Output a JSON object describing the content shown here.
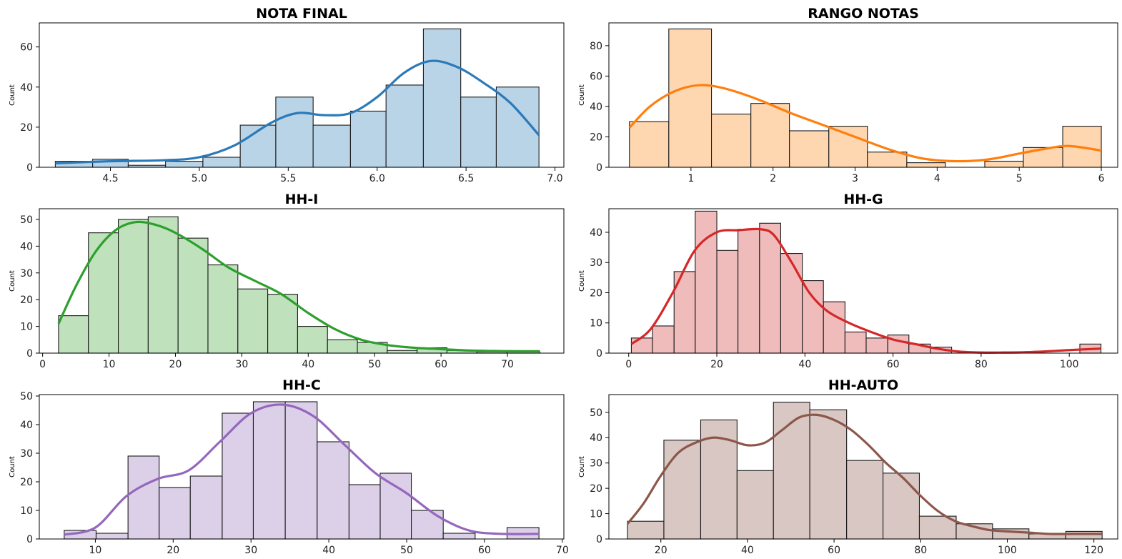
{
  "chart_data": [
    {
      "type": "histogram",
      "title": "NOTA FINAL",
      "ylabel": "Count",
      "xlabel": "",
      "xlim": [
        4.1,
        7.05
      ],
      "ylim": [
        0,
        72
      ],
      "xticks": [
        "4.5",
        "5.0",
        "5.5",
        "6.0",
        "6.5",
        "7.0"
      ],
      "yticks": [
        "0",
        "20",
        "40",
        "60"
      ],
      "bin_edges": [
        4.19,
        4.4,
        4.6,
        4.81,
        5.02,
        5.23,
        5.43,
        5.64,
        5.85,
        6.05,
        6.26,
        6.47,
        6.67,
        6.91
      ],
      "values": [
        3,
        4,
        1,
        3,
        5,
        21,
        35,
        21,
        28,
        41,
        69,
        35,
        40
      ],
      "kde": {
        "x": [
          4.19,
          4.5,
          4.8,
          5.0,
          5.2,
          5.4,
          5.55,
          5.7,
          5.85,
          6.0,
          6.15,
          6.3,
          6.45,
          6.6,
          6.75,
          6.91
        ],
        "y": [
          2,
          3,
          3.5,
          5,
          11,
          22,
          27,
          26,
          27,
          35,
          47,
          53,
          50,
          42,
          32,
          16
        ]
      },
      "fill": "#b9d3e7",
      "line": "#2a7ab9"
    },
    {
      "type": "histogram",
      "title": "RANGO NOTAS",
      "ylabel": "Count",
      "xlabel": "",
      "xlim": [
        0.0,
        6.2
      ],
      "ylim": [
        0,
        95
      ],
      "xticks": [
        "1",
        "2",
        "3",
        "4",
        "5",
        "6"
      ],
      "yticks": [
        "0",
        "20",
        "40",
        "60",
        "80"
      ],
      "bin_edges": [
        0.25,
        0.73,
        1.25,
        1.73,
        2.2,
        2.68,
        3.15,
        3.63,
        4.1,
        4.58,
        5.05,
        5.53,
        6.0
      ],
      "values": [
        30,
        91,
        35,
        42,
        24,
        27,
        10,
        3,
        0,
        4,
        13,
        27
      ],
      "kde": {
        "x": [
          0.25,
          0.5,
          0.8,
          1.1,
          1.4,
          1.8,
          2.2,
          2.6,
          3.0,
          3.4,
          3.8,
          4.2,
          4.6,
          5.0,
          5.3,
          5.6,
          6.0
        ],
        "y": [
          26,
          40,
          50,
          54,
          52,
          45,
          36,
          28,
          20,
          12,
          6,
          4,
          5,
          9,
          12,
          14,
          11
        ]
      },
      "fill": "#fed6b0",
      "line": "#ff7f0e"
    },
    {
      "type": "histogram",
      "title": "HH-I",
      "ylabel": "Count",
      "xlabel": "",
      "xlim": [
        -0.5,
        78.5
      ],
      "ylim": [
        0,
        54
      ],
      "xticks": [
        "0",
        "10",
        "20",
        "30",
        "40",
        "50",
        "60",
        "70"
      ],
      "yticks": [
        "0",
        "10",
        "20",
        "30",
        "40",
        "50"
      ],
      "bin_edges": [
        2.4,
        6.9,
        11.4,
        15.9,
        20.4,
        24.9,
        29.4,
        33.9,
        38.4,
        42.9,
        47.4,
        51.9,
        56.4,
        60.9,
        65.4,
        69.9,
        74.9
      ],
      "values": [
        14,
        45,
        50,
        51,
        43,
        33,
        24,
        22,
        10,
        5,
        4,
        1,
        2,
        1,
        0.5,
        0.5
      ],
      "kde": {
        "x": [
          2.4,
          5,
          8,
          11,
          14,
          17,
          20,
          24,
          28,
          32,
          36,
          40,
          44,
          48,
          52,
          56,
          60,
          64,
          68,
          72,
          74.9
        ],
        "y": [
          11,
          25,
          38,
          46,
          49,
          48,
          45,
          39,
          32,
          27,
          22,
          15,
          9,
          5,
          3,
          2,
          1.5,
          1,
          0.8,
          0.7,
          0.7
        ]
      },
      "fill": "#bfe2bd",
      "line": "#2ca02c"
    },
    {
      "type": "histogram",
      "title": "HH-G",
      "ylabel": "Count",
      "xlabel": "",
      "xlim": [
        -4.5,
        111
      ],
      "ylim": [
        0,
        47.8
      ],
      "xticks": [
        "0",
        "20",
        "40",
        "60",
        "80",
        "100"
      ],
      "yticks": [
        "0",
        "10",
        "20",
        "30",
        "40"
      ],
      "bin_edges": [
        0.6,
        5.4,
        10.3,
        15.1,
        20.0,
        24.8,
        29.7,
        34.5,
        39.4,
        44.2,
        49.1,
        53.9,
        58.8,
        63.6,
        68.5,
        73.3,
        78.2,
        83.0,
        87.9,
        92.7,
        97.6,
        102.4,
        107.2
      ],
      "values": [
        5,
        9,
        27,
        47,
        34,
        41,
        43,
        33,
        24,
        17,
        7,
        5,
        6,
        3,
        2,
        0,
        0,
        0,
        0,
        0,
        0,
        3
      ],
      "kde": {
        "x": [
          0.6,
          5,
          10,
          15,
          20,
          25,
          30,
          33,
          37,
          41,
          45,
          50,
          55,
          60,
          65,
          70,
          75,
          80,
          85,
          90,
          95,
          100,
          107.2
        ],
        "y": [
          3,
          8,
          20,
          34,
          40,
          40.7,
          41,
          39,
          30,
          20,
          14,
          10,
          7,
          4.5,
          3,
          1.5,
          0.5,
          0.2,
          0.2,
          0.3,
          0.6,
          1,
          1.5
        ]
      },
      "fill": "#efbbbb",
      "line": "#d62728"
    },
    {
      "type": "histogram",
      "title": "HH-C",
      "ylabel": "Count",
      "xlabel": "",
      "xlim": [
        2.8,
        70.2
      ],
      "ylim": [
        0,
        50.5
      ],
      "xticks": [
        "10",
        "20",
        "30",
        "40",
        "50",
        "60",
        "70"
      ],
      "yticks": [
        "0",
        "10",
        "20",
        "30",
        "40",
        "50"
      ],
      "bin_edges": [
        6.0,
        10.1,
        14.2,
        18.2,
        22.2,
        26.3,
        30.3,
        34.4,
        38.5,
        42.6,
        46.6,
        50.6,
        54.7,
        58.8,
        62.9,
        67.0
      ],
      "values": [
        3,
        2,
        29,
        18,
        22,
        44,
        48,
        48,
        34,
        19,
        23,
        10,
        2,
        0,
        4
      ],
      "kde": {
        "x": [
          6,
          10,
          14,
          18,
          22,
          26,
          30,
          34,
          38,
          42,
          46,
          50,
          54,
          58,
          62,
          67
        ],
        "y": [
          1.5,
          4,
          15,
          21,
          24,
          34,
          44,
          47,
          43,
          33,
          23,
          16,
          8,
          3,
          1.8,
          1.8
        ]
      },
      "fill": "#dccfe8",
      "line": "#9467bd"
    },
    {
      "type": "histogram",
      "title": "HH-AUTO",
      "ylabel": "Count",
      "xlabel": "",
      "xlim": [
        8,
        125.5
      ],
      "ylim": [
        0,
        57
      ],
      "xticks": [
        "20",
        "40",
        "60",
        "80",
        "100",
        "120"
      ],
      "yticks": [
        "0",
        "10",
        "20",
        "30",
        "40",
        "50"
      ],
      "bin_edges": [
        12.3,
        20.7,
        29.2,
        37.6,
        46.0,
        54.4,
        62.9,
        71.3,
        79.7,
        88.2,
        96.6,
        105.0,
        113.5,
        121.9
      ],
      "values": [
        7,
        39,
        47,
        27,
        54,
        51,
        31,
        26,
        9,
        6,
        4,
        2,
        3
      ],
      "kde": {
        "x": [
          12.3,
          16,
          20,
          24,
          28,
          32,
          36,
          40,
          44,
          48,
          52,
          56,
          60,
          64,
          68,
          72,
          76,
          80,
          84,
          88,
          92,
          96,
          100,
          105,
          110,
          115,
          121.9
        ],
        "y": [
          6,
          14,
          25,
          34,
          38,
          40,
          39,
          37,
          38,
          43,
          48,
          49,
          47,
          43,
          37,
          30,
          24,
          17,
          11,
          7,
          5,
          3.5,
          3,
          2.5,
          2,
          2,
          2
        ]
      },
      "fill": "#d8c7c2",
      "line": "#8c564b"
    }
  ]
}
